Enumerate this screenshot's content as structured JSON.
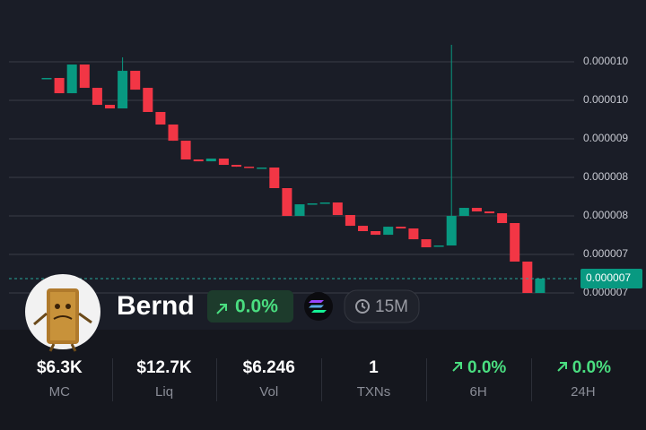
{
  "chart_data": {
    "type": "candlestick",
    "ylim": [
      6.226e-06,
      1.0933e-05
    ],
    "yticks": [
      {
        "value": 1.005e-05,
        "label": "0.000010"
      },
      {
        "value": 9.5e-06,
        "label": "0.000010"
      },
      {
        "value": 8.95e-06,
        "label": "0.000009"
      },
      {
        "value": 8.4e-06,
        "label": "0.000008"
      },
      {
        "value": 7.85e-06,
        "label": "0.000008"
      },
      {
        "value": 7.3e-06,
        "label": "0.000007"
      },
      {
        "value": 6.75e-06,
        "label": "0.000007"
      }
    ],
    "grid": true,
    "up_color": "#089981",
    "down_color": "#f23645",
    "last_price": {
      "value": 6.955e-06,
      "label": "0.000007"
    },
    "candles": {
      "open": [
        9.82e-06,
        9.82e-06,
        9.602e-06,
        1.0012e-05,
        9.679e-06,
        9.436e-06,
        9.385e-06,
        9.922e-06,
        9.679e-06,
        9.334e-06,
        9.155e-06,
        8.924e-06,
        8.656e-06,
        8.63e-06,
        8.669e-06,
        8.579e-06,
        8.553e-06,
        8.541e-06,
        8.541e-06,
        8.247e-06,
        7.85e-06,
        8.029e-06,
        8.042e-06,
        8.042e-06,
        7.863e-06,
        7.709e-06,
        7.633e-06,
        7.581e-06,
        7.696e-06,
        7.671e-06,
        7.517e-06,
        7.428e-06,
        7.428e-06,
        7.85e-06,
        7.965e-06,
        7.914e-06,
        7.888e-06,
        7.748e-06,
        7.198e-06,
        6.75e-06
      ],
      "close": [
        9.82e-06,
        9.602e-06,
        1.0012e-05,
        9.679e-06,
        9.436e-06,
        9.385e-06,
        9.922e-06,
        9.653e-06,
        9.334e-06,
        9.155e-06,
        8.924e-06,
        8.656e-06,
        8.63e-06,
        8.669e-06,
        8.579e-06,
        8.553e-06,
        8.541e-06,
        8.541e-06,
        8.247e-06,
        7.85e-06,
        8.016e-06,
        8.029e-06,
        8.042e-06,
        7.863e-06,
        7.709e-06,
        7.633e-06,
        7.581e-06,
        7.696e-06,
        7.671e-06,
        7.517e-06,
        7.402e-06,
        7.428e-06,
        7.85e-06,
        7.965e-06,
        7.914e-06,
        7.888e-06,
        7.748e-06,
        7.198e-06,
        6.75e-06,
        6.955e-06
      ],
      "high": [
        9.82e-06,
        9.82e-06,
        1.0012e-05,
        1.0012e-05,
        9.679e-06,
        9.436e-06,
        1.0114e-05,
        9.922e-06,
        9.679e-06,
        9.334e-06,
        9.155e-06,
        8.924e-06,
        8.656e-06,
        8.669e-06,
        8.669e-06,
        8.579e-06,
        8.553e-06,
        8.541e-06,
        8.541e-06,
        8.247e-06,
        8.016e-06,
        8.029e-06,
        8.042e-06,
        8.042e-06,
        7.863e-06,
        7.709e-06,
        7.633e-06,
        7.696e-06,
        7.696e-06,
        7.671e-06,
        7.517e-06,
        7.428e-06,
        1.0293e-05,
        7.965e-06,
        7.965e-06,
        7.914e-06,
        7.888e-06,
        7.748e-06,
        7.198e-06,
        6.955e-06
      ],
      "low": [
        9.82e-06,
        9.602e-06,
        9.602e-06,
        9.679e-06,
        9.436e-06,
        9.385e-06,
        9.385e-06,
        9.653e-06,
        9.334e-06,
        9.155e-06,
        8.924e-06,
        8.656e-06,
        8.63e-06,
        8.63e-06,
        8.579e-06,
        8.553e-06,
        8.541e-06,
        8.541e-06,
        8.247e-06,
        7.85e-06,
        7.85e-06,
        8.029e-06,
        8.042e-06,
        7.863e-06,
        7.709e-06,
        7.633e-06,
        7.581e-06,
        7.581e-06,
        7.671e-06,
        7.517e-06,
        7.402e-06,
        7.428e-06,
        7.428e-06,
        7.85e-06,
        7.914e-06,
        7.888e-06,
        7.748e-06,
        7.198e-06,
        6.75e-06,
        6.75e-06
      ]
    }
  },
  "token": {
    "name": "Bernd",
    "change": "0.0%",
    "timeframe": "15M"
  },
  "stats": [
    {
      "value": "$6.3K",
      "label": "MC"
    },
    {
      "value": "$12.7K",
      "label": "Liq"
    },
    {
      "value": "$6.246",
      "label": "Vol"
    },
    {
      "value": "1",
      "label": "TXNs"
    },
    {
      "value": "0.0%",
      "label": "6H"
    },
    {
      "value": "0.0%",
      "label": "24H"
    }
  ]
}
